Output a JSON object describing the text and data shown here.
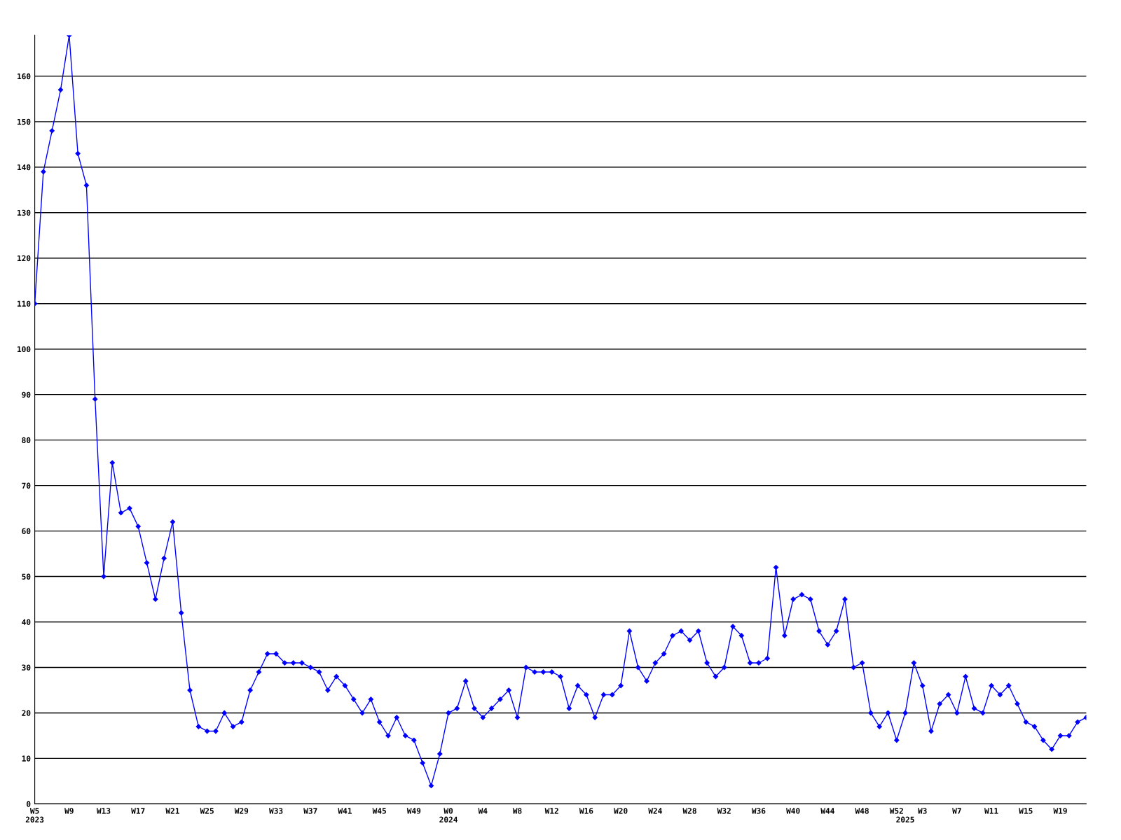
{
  "chart_data": {
    "type": "line",
    "categories": [
      "W5\n2023",
      null,
      null,
      null,
      "W9",
      null,
      null,
      null,
      "W13",
      null,
      null,
      null,
      "W17",
      null,
      null,
      null,
      "W21",
      null,
      null,
      null,
      "W25",
      null,
      null,
      null,
      "W29",
      null,
      null,
      null,
      "W33",
      null,
      null,
      null,
      "W37",
      null,
      null,
      null,
      "W41",
      null,
      null,
      null,
      "W45",
      null,
      null,
      null,
      "W49",
      null,
      null,
      null,
      "W0\n2024",
      null,
      null,
      null,
      "W4",
      null,
      null,
      null,
      "W8",
      null,
      null,
      null,
      "W12",
      null,
      null,
      null,
      "W16",
      null,
      null,
      null,
      "W20",
      null,
      null,
      null,
      "W24",
      null,
      null,
      null,
      "W28",
      null,
      null,
      null,
      "W32",
      null,
      null,
      null,
      "W36",
      null,
      null,
      null,
      "W40",
      null,
      null,
      null,
      "W44",
      null,
      null,
      null,
      "W48",
      null,
      null,
      null,
      "W52",
      "\n2025",
      null,
      "W3",
      null,
      null,
      null,
      "W7",
      null,
      null,
      null,
      "W11",
      null,
      null,
      null,
      "W15",
      null,
      null,
      null,
      "W19",
      null,
      null,
      null
    ],
    "series": [
      {
        "color": "#0000ff",
        "values": [
          110,
          139,
          148,
          157,
          169,
          143,
          136,
          89,
          50,
          75,
          64,
          65,
          61,
          53,
          45,
          54,
          62,
          42,
          25,
          17,
          16,
          16,
          20,
          17,
          18,
          25,
          29,
          33,
          33,
          31,
          31,
          31,
          30,
          29,
          25,
          28,
          26,
          23,
          20,
          23,
          18,
          15,
          19,
          15,
          14,
          9,
          4,
          11,
          20,
          21,
          27,
          21,
          19,
          21,
          23,
          25,
          19,
          30,
          29,
          29,
          29,
          28,
          21,
          26,
          24,
          19,
          24,
          24,
          26,
          38,
          30,
          27,
          31,
          33,
          37,
          38,
          36,
          38,
          31,
          28,
          30,
          39,
          37,
          31,
          31,
          32,
          52,
          37,
          45,
          46,
          45,
          38,
          35,
          38,
          45,
          30,
          31,
          20,
          17,
          20,
          14,
          20,
          31,
          26,
          16,
          22,
          24,
          20,
          28,
          21,
          20,
          26,
          24,
          26,
          22,
          18,
          17,
          14,
          12,
          15,
          15,
          18,
          19
        ]
      }
    ],
    "ylim": [
      0,
      169
    ],
    "yticks": [
      0,
      10,
      20,
      30,
      40,
      50,
      60,
      70,
      80,
      90,
      100,
      110,
      120,
      130,
      140,
      150,
      160
    ],
    "grid": "y",
    "marker": "diamond",
    "line_style": "solid"
  }
}
